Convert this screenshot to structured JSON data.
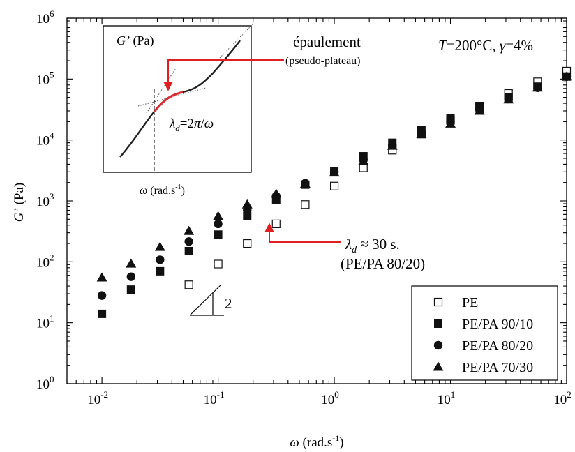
{
  "chart_data": {
    "type": "scatter",
    "x_scale": "log",
    "y_scale": "log",
    "xlim": [
      0.005,
      100
    ],
    "ylim": [
      1,
      1000000
    ],
    "grid": false,
    "legend_position": "bottom-right",
    "xlabel": {
      "sym": "ω",
      "rest": " (rad.s",
      "sup": "-1",
      "close": ")"
    },
    "ylabel": {
      "sym": "G’",
      "rest": " (Pa)"
    },
    "x_ticks": [
      {
        "value": 0.01,
        "base": "10",
        "exp": "-2"
      },
      {
        "value": 0.1,
        "base": "10",
        "exp": "-1"
      },
      {
        "value": 1,
        "base": "10",
        "exp": "0"
      },
      {
        "value": 10,
        "base": "10",
        "exp": "1"
      },
      {
        "value": 100,
        "base": "10",
        "exp": "2"
      }
    ],
    "y_ticks": [
      {
        "value": 1,
        "base": "10",
        "exp": "0"
      },
      {
        "value": 10,
        "base": "10",
        "exp": "1"
      },
      {
        "value": 100,
        "base": "10",
        "exp": "2"
      },
      {
        "value": 1000,
        "base": "10",
        "exp": "3"
      },
      {
        "value": 10000,
        "base": "10",
        "exp": "4"
      },
      {
        "value": 100000,
        "base": "10",
        "exp": "5"
      },
      {
        "value": 1000000,
        "base": "10",
        "exp": "6"
      }
    ],
    "series": [
      {
        "name": "PE",
        "marker": "square-open",
        "x": [
          0.056,
          0.1,
          0.178,
          0.316,
          0.562,
          1.0,
          1.78,
          3.16,
          5.62,
          10,
          17.8,
          31.6,
          56.2,
          100
        ],
        "y": [
          42,
          92,
          200,
          420,
          870,
          1750,
          3500,
          6800,
          12500,
          21000,
          36000,
          58000,
          90000,
          135000
        ]
      },
      {
        "name": "PE/PA 90/10",
        "marker": "square-filled",
        "x": [
          0.01,
          0.0178,
          0.0316,
          0.056,
          0.1,
          0.178,
          0.316,
          0.562,
          1.0,
          1.78,
          3.16,
          5.62,
          10,
          17.8,
          31.6,
          56.2,
          100
        ],
        "y": [
          14,
          35,
          70,
          150,
          280,
          560,
          1050,
          1850,
          3100,
          5400,
          9000,
          14500,
          23000,
          35000,
          50000,
          75000,
          110000
        ]
      },
      {
        "name": "PE/PA 80/20",
        "marker": "circle-filled",
        "x": [
          0.01,
          0.0178,
          0.0316,
          0.056,
          0.1,
          0.178,
          0.316,
          0.562,
          1.0,
          1.78,
          3.16,
          5.62,
          10,
          17.8,
          31.6,
          56.2,
          100
        ],
        "y": [
          28,
          57,
          108,
          215,
          420,
          700,
          1200,
          1950,
          3000,
          4700,
          8200,
          13000,
          20000,
          31000,
          47000,
          72000,
          110000
        ]
      },
      {
        "name": "PE/PA 70/30",
        "marker": "triangle-filled",
        "x": [
          0.01,
          0.0178,
          0.0316,
          0.056,
          0.1,
          0.178,
          0.316,
          0.562,
          1.0,
          1.78,
          3.16,
          5.62,
          10,
          17.8,
          31.6,
          56.2,
          100
        ],
        "y": [
          55,
          93,
          175,
          320,
          560,
          870,
          1300,
          1900,
          2900,
          4500,
          8000,
          12500,
          18500,
          30000,
          46000,
          72000,
          110000
        ]
      }
    ],
    "annotations": {
      "condition": {
        "T": "T",
        "eq": "=200°C, ",
        "gamma": "γ",
        "val": "=4%"
      },
      "lambda_note": {
        "sym": "λ",
        "sub": "d",
        "approx": " ≈ 30 s.",
        "line2": "(PE/PA 80/20)",
        "target_x": 0.28,
        "target_y": 380
      },
      "slope_label": "2"
    },
    "inset": {
      "ylabel": {
        "sym": "G’",
        "rest": " (Pa)"
      },
      "xlabel": {
        "sym": "ω",
        "rest": " (rad.s",
        "sup": "-1",
        "close": ")"
      },
      "shoulder_label": "épaulement",
      "shoulder_sub": "(pseudo-plateau)",
      "relation": {
        "sym": "λ",
        "sub": "d",
        "rest": "=2",
        "pi": "π",
        "slash": "/",
        "omega": "ω"
      },
      "curve_color": "#222222",
      "highlight_color": "#d63030"
    },
    "colors": {
      "arrow": "#e02020",
      "markers": "#111111"
    }
  }
}
